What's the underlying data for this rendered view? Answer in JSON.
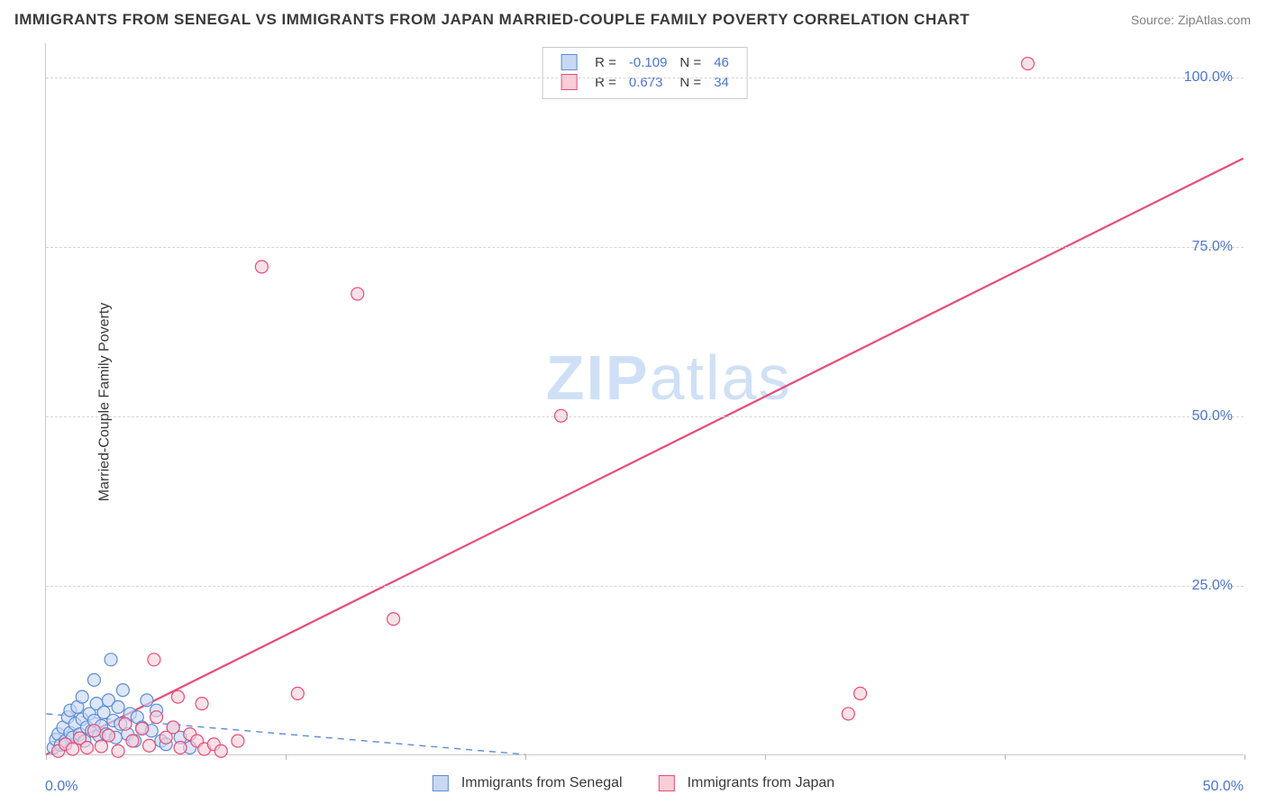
{
  "title": "IMMIGRANTS FROM SENEGAL VS IMMIGRANTS FROM JAPAN MARRIED-COUPLE FAMILY POVERTY CORRELATION CHART",
  "source": "Source: ZipAtlas.com",
  "ylabel": "Married-Couple Family Poverty",
  "watermark_bold": "ZIP",
  "watermark_rest": "atlas",
  "chart": {
    "type": "scatter",
    "xlim": [
      0,
      50
    ],
    "ylim": [
      0,
      105
    ],
    "x_ticks": [
      0,
      10,
      20,
      30,
      40,
      50
    ],
    "y_ticks": [
      25,
      50,
      75,
      100
    ],
    "x_tick_labels": {
      "min": "0.0%",
      "max": "50.0%"
    },
    "y_tick_labels": [
      "25.0%",
      "50.0%",
      "75.0%",
      "100.0%"
    ],
    "grid_color": "#d6d6d6",
    "axis_color": "#c9c9c9",
    "tick_label_color": "#4a74d4",
    "background_color": "#ffffff",
    "marker_radius": 7,
    "marker_stroke_width": 1.2,
    "series": [
      {
        "name": "Immigrants from Senegal",
        "fill": "#c9d8f2",
        "stroke": "#5b8dd6",
        "fill_opacity": 0.65,
        "R": "-0.109",
        "N": "46",
        "trend": {
          "x1": 0,
          "y1": 6.0,
          "x2": 20,
          "y2": 0,
          "dashed": true,
          "color": "#5b8dd6",
          "width": 1.4
        },
        "points": [
          [
            0.3,
            1.0
          ],
          [
            0.4,
            2.2
          ],
          [
            0.5,
            3.0
          ],
          [
            0.6,
            1.4
          ],
          [
            0.7,
            4.0
          ],
          [
            0.8,
            2.0
          ],
          [
            0.9,
            5.5
          ],
          [
            1.0,
            3.2
          ],
          [
            1.0,
            6.5
          ],
          [
            1.1,
            2.5
          ],
          [
            1.2,
            4.5
          ],
          [
            1.3,
            7.0
          ],
          [
            1.4,
            3.0
          ],
          [
            1.5,
            5.2
          ],
          [
            1.5,
            8.5
          ],
          [
            1.6,
            2.0
          ],
          [
            1.7,
            4.0
          ],
          [
            1.8,
            6.0
          ],
          [
            1.9,
            3.5
          ],
          [
            2.0,
            5.0
          ],
          [
            2.0,
            11.0
          ],
          [
            2.1,
            7.5
          ],
          [
            2.2,
            2.8
          ],
          [
            2.3,
            4.2
          ],
          [
            2.4,
            6.2
          ],
          [
            2.5,
            3.0
          ],
          [
            2.6,
            8.0
          ],
          [
            2.7,
            14.0
          ],
          [
            2.8,
            5.0
          ],
          [
            2.9,
            2.5
          ],
          [
            3.0,
            7.0
          ],
          [
            3.1,
            4.5
          ],
          [
            3.2,
            9.5
          ],
          [
            3.4,
            3.0
          ],
          [
            3.5,
            6.0
          ],
          [
            3.7,
            2.0
          ],
          [
            3.8,
            5.5
          ],
          [
            4.0,
            4.0
          ],
          [
            4.2,
            8.0
          ],
          [
            4.4,
            3.5
          ],
          [
            4.6,
            6.5
          ],
          [
            4.8,
            2.0
          ],
          [
            5.0,
            1.5
          ],
          [
            5.3,
            4.0
          ],
          [
            5.6,
            2.5
          ],
          [
            6.0,
            1.0
          ]
        ]
      },
      {
        "name": "Immigrants from Japan",
        "fill": "#f7cdd8",
        "stroke": "#e94b7a",
        "fill_opacity": 0.6,
        "R": "0.673",
        "N": "34",
        "trend": {
          "x1": 0,
          "y1": 0,
          "x2": 50,
          "y2": 88,
          "dashed": false,
          "color": "#e94b7a",
          "width": 2.2
        },
        "points": [
          [
            0.5,
            0.5
          ],
          [
            0.8,
            1.5
          ],
          [
            1.1,
            0.8
          ],
          [
            1.4,
            2.4
          ],
          [
            1.7,
            1.0
          ],
          [
            2.0,
            3.5
          ],
          [
            2.3,
            1.2
          ],
          [
            2.6,
            2.8
          ],
          [
            3.0,
            0.5
          ],
          [
            3.3,
            4.5
          ],
          [
            3.6,
            2.0
          ],
          [
            4.0,
            3.8
          ],
          [
            4.3,
            1.3
          ],
          [
            4.6,
            5.5
          ],
          [
            4.5,
            14.0
          ],
          [
            5.0,
            2.5
          ],
          [
            5.3,
            4.0
          ],
          [
            5.6,
            1.0
          ],
          [
            6.0,
            3.0
          ],
          [
            6.3,
            2.0
          ],
          [
            6.6,
            0.8
          ],
          [
            7.0,
            1.5
          ],
          [
            7.3,
            0.5
          ],
          [
            5.5,
            8.5
          ],
          [
            6.5,
            7.5
          ],
          [
            8.0,
            2.0
          ],
          [
            10.5,
            9.0
          ],
          [
            13.0,
            68.0
          ],
          [
            9.0,
            72.0
          ],
          [
            14.5,
            20.0
          ],
          [
            21.5,
            50.0
          ],
          [
            33.5,
            6.0
          ],
          [
            34.0,
            9.0
          ],
          [
            41.0,
            102.0
          ]
        ]
      }
    ],
    "legend_top": {
      "R_label": "R =",
      "N_label": "N ="
    },
    "legend_bottom_labels": [
      "Immigrants from Senegal",
      "Immigrants from Japan"
    ]
  }
}
